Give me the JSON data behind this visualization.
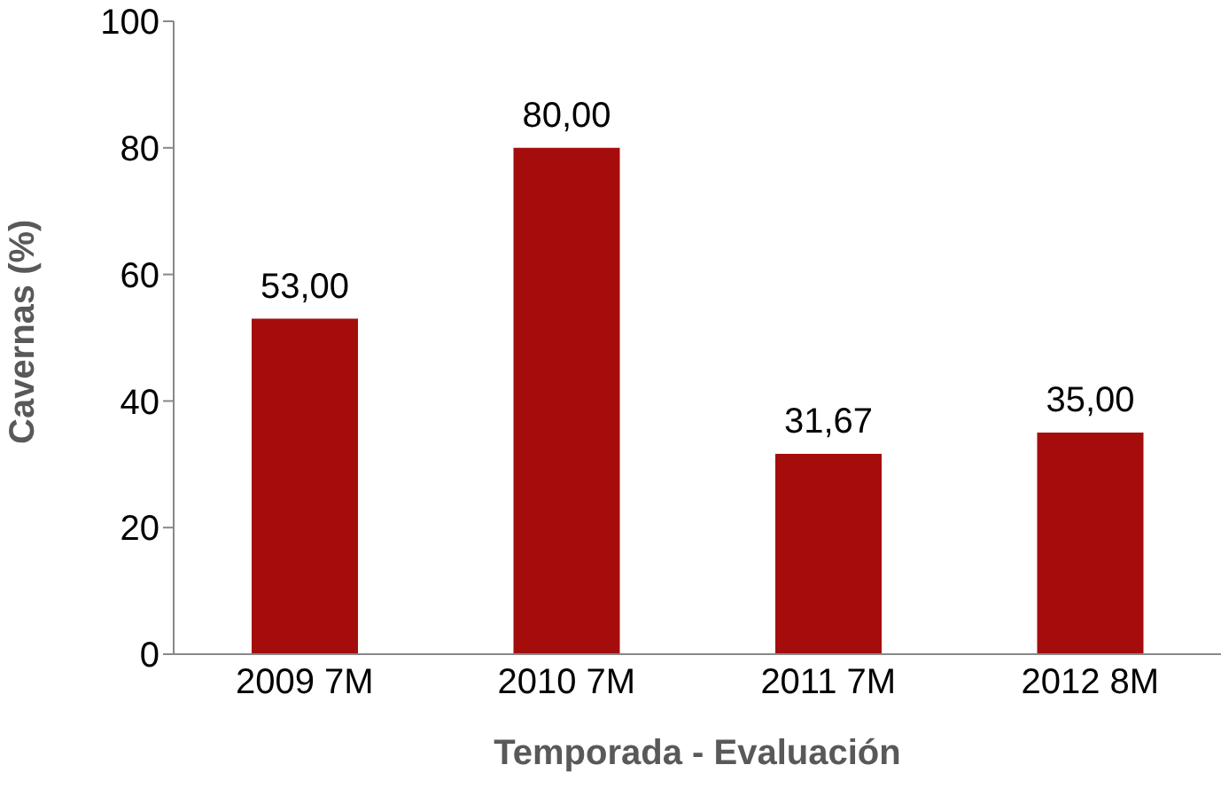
{
  "chart_data": {
    "type": "bar",
    "xlabel": "Temporada - Evaluación",
    "ylabel": "Cavernas (%)",
    "categories": [
      "2009 7M",
      "2010 7M",
      "2011 7M",
      "2012 8M"
    ],
    "values": [
      53,
      80,
      31.67,
      35
    ],
    "color": "#a50d0d",
    "value_labels": [
      "53,00",
      "80,00",
      "31,67",
      "35,00"
    ],
    "ylim": [
      0,
      100
    ],
    "yticks": [
      0,
      20,
      40,
      60,
      80,
      100
    ],
    "grid": false,
    "legend": false
  }
}
